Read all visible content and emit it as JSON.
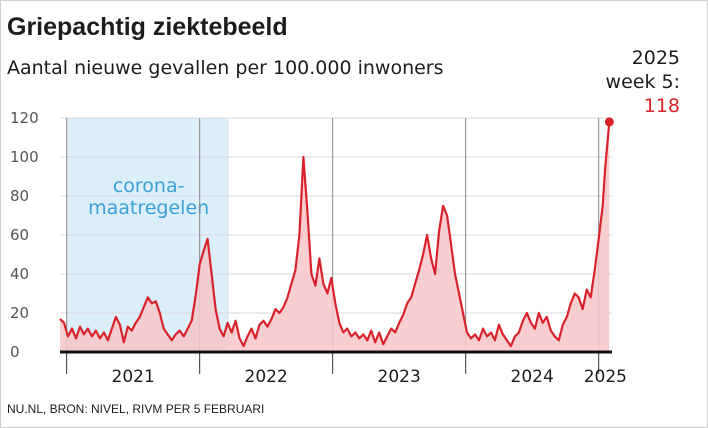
{
  "title": "Griepachtig ziektebeeld",
  "subtitle": "Aantal nieuwe gevallen per 100.000 inwoners",
  "callout": {
    "line1": "2025",
    "line2": "week 5:",
    "value": "118"
  },
  "source": "NU.NL, BRON: NIVEL, RIVM PER 5 FEBRUARI",
  "colors": {
    "line": "#d8232a",
    "area": "#f7c5c8",
    "shade": "#dceef9",
    "annotation": "#3aa0d8",
    "axis": "#111111"
  },
  "chart_data": {
    "type": "area",
    "title": "Griepachtig ziektebeeld",
    "ylabel": "Aantal nieuwe gevallen per 100.000 inwoners",
    "ylim": [
      0,
      120
    ],
    "yticks": [
      0,
      20,
      40,
      60,
      80,
      100,
      120
    ],
    "xlim": [
      2020.95,
      2025.1
    ],
    "x_categories": [
      {
        "label": "2021",
        "from": 2021,
        "to": 2022
      },
      {
        "label": "2022",
        "from": 2022,
        "to": 2023
      },
      {
        "label": "2023",
        "from": 2023,
        "to": 2024
      },
      {
        "label": "2024",
        "from": 2024,
        "to": 2025
      },
      {
        "label": "2025",
        "from": 2025,
        "to": 2025.1
      }
    ],
    "shaded_region": {
      "label_line1": "corona-",
      "label_line2": "maatregelen",
      "from": 2021.0,
      "to": 2022.22
    },
    "highlight": {
      "x": 2025.08,
      "y": 118,
      "label": "2025 week 5"
    },
    "series": [
      {
        "name": "Griepachtig ziektebeeld",
        "x": [
          2020.95,
          2020.98,
          2021.01,
          2021.04,
          2021.07,
          2021.1,
          2021.13,
          2021.16,
          2021.19,
          2021.22,
          2021.25,
          2021.28,
          2021.31,
          2021.34,
          2021.37,
          2021.4,
          2021.43,
          2021.46,
          2021.49,
          2021.52,
          2021.55,
          2021.58,
          2021.61,
          2021.64,
          2021.67,
          2021.7,
          2021.73,
          2021.76,
          2021.79,
          2021.82,
          2021.85,
          2021.88,
          2021.91,
          2021.94,
          2021.97,
          2022.0,
          2022.03,
          2022.06,
          2022.09,
          2022.12,
          2022.15,
          2022.18,
          2022.21,
          2022.24,
          2022.27,
          2022.3,
          2022.33,
          2022.36,
          2022.39,
          2022.42,
          2022.45,
          2022.48,
          2022.51,
          2022.54,
          2022.57,
          2022.6,
          2022.63,
          2022.66,
          2022.69,
          2022.72,
          2022.75,
          2022.78,
          2022.81,
          2022.84,
          2022.87,
          2022.9,
          2022.93,
          2022.96,
          2022.99,
          2023.02,
          2023.05,
          2023.08,
          2023.11,
          2023.14,
          2023.17,
          2023.2,
          2023.23,
          2023.26,
          2023.29,
          2023.32,
          2023.35,
          2023.38,
          2023.41,
          2023.44,
          2023.47,
          2023.5,
          2023.53,
          2023.56,
          2023.59,
          2023.62,
          2023.65,
          2023.68,
          2023.71,
          2023.74,
          2023.77,
          2023.8,
          2023.83,
          2023.86,
          2023.89,
          2023.92,
          2023.95,
          2023.98,
          2024.01,
          2024.04,
          2024.07,
          2024.1,
          2024.13,
          2024.16,
          2024.19,
          2024.22,
          2024.25,
          2024.28,
          2024.31,
          2024.34,
          2024.37,
          2024.4,
          2024.43,
          2024.46,
          2024.49,
          2024.52,
          2024.55,
          2024.58,
          2024.61,
          2024.64,
          2024.67,
          2024.7,
          2024.73,
          2024.76,
          2024.79,
          2024.82,
          2024.85,
          2024.88,
          2024.91,
          2024.94,
          2024.97,
          2025.0,
          2025.03,
          2025.05,
          2025.08
        ],
        "values": [
          17,
          15,
          8,
          12,
          7,
          13,
          9,
          12,
          8,
          11,
          7,
          10,
          6,
          12,
          18,
          14,
          5,
          13,
          11,
          15,
          18,
          23,
          28,
          25,
          26,
          20,
          12,
          9,
          6,
          9,
          11,
          8,
          12,
          16,
          29,
          45,
          52,
          58,
          40,
          22,
          12,
          8,
          15,
          10,
          16,
          7,
          3,
          8,
          12,
          7,
          14,
          16,
          13,
          17,
          22,
          20,
          23,
          28,
          35,
          42,
          60,
          100,
          72,
          40,
          34,
          48,
          35,
          30,
          38,
          25,
          15,
          10,
          12,
          8,
          10,
          7,
          9,
          6,
          11,
          5,
          10,
          4,
          8,
          12,
          10,
          15,
          19,
          25,
          28,
          35,
          42,
          50,
          60,
          48,
          40,
          62,
          75,
          70,
          55,
          40,
          30,
          20,
          10,
          7,
          9,
          6,
          12,
          8,
          10,
          6,
          14,
          9,
          6,
          3,
          8,
          10,
          16,
          20,
          15,
          12,
          20,
          15,
          18,
          11,
          8,
          6,
          14,
          18,
          25,
          30,
          28,
          22,
          32,
          28,
          42,
          58,
          75,
          95,
          118
        ]
      }
    ]
  }
}
